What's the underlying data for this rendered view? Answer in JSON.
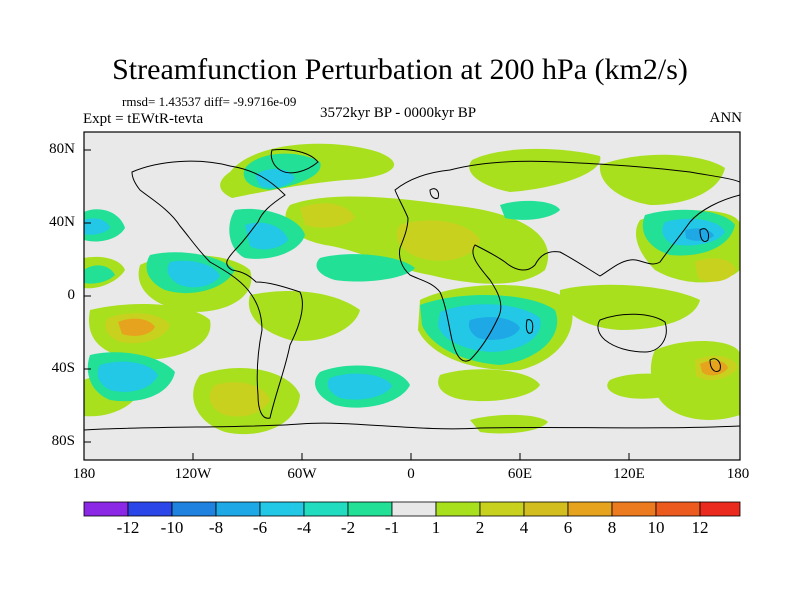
{
  "title": "Streamfunction Perturbation at 200 hPa (km2/s)",
  "stats": "rmsd= 1.43537 diff= -9.9716e-09",
  "experiment": "Expt = tEWtR-tevta",
  "period": "3572kyr BP - 0000kyr BP",
  "season": "ANN",
  "colors": {
    "background": "#e9e9e9",
    "coastline": "#000000"
  },
  "map": {
    "type": "contour-fill",
    "projection": "cylindrical-equidistant",
    "lon_range": [
      -180,
      180
    ],
    "lat_range": [
      -90,
      90
    ],
    "y_ticks": [
      "80N",
      "40N",
      "0",
      "40S",
      "80S"
    ],
    "x_ticks": [
      "180",
      "120W",
      "60W",
      "0",
      "60E",
      "120E",
      "180"
    ]
  },
  "colorbar": {
    "colors": [
      "#8a28e6",
      "#2b46e8",
      "#1e82de",
      "#1ea8e6",
      "#23c8e6",
      "#22dcc0",
      "#22e096",
      "#e8e8e8",
      "#a8e01e",
      "#c8d21e",
      "#d2be1e",
      "#e6a41e",
      "#ec7a1e",
      "#ec5a1e",
      "#ea2a1e"
    ],
    "labels": [
      "-12",
      "-10",
      "-8",
      "-6",
      "-4",
      "-2",
      "-1",
      "1",
      "2",
      "4",
      "6",
      "8",
      "10",
      "12"
    ]
  }
}
